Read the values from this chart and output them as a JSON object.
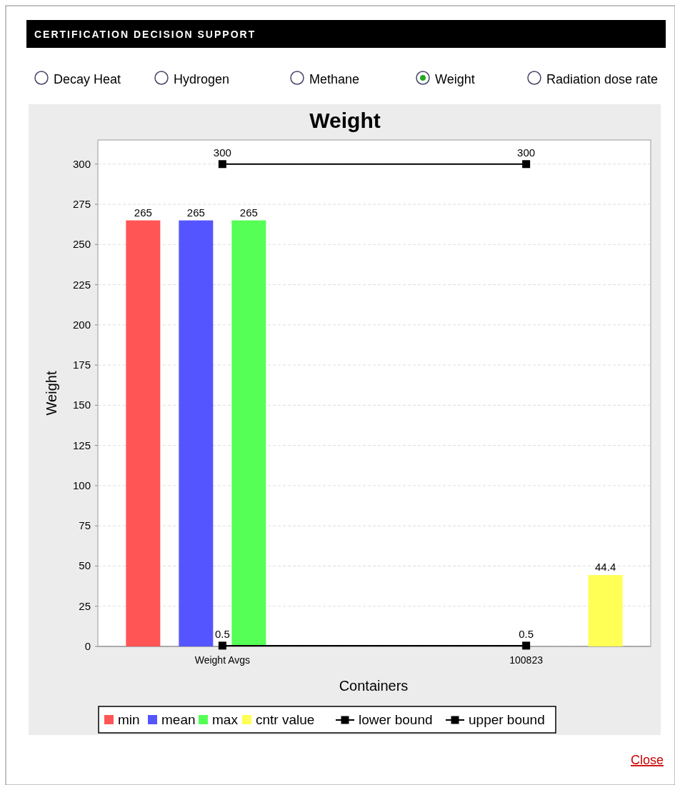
{
  "chart_data": {
    "type": "bar",
    "title": "Weight",
    "xlabel": "Containers",
    "ylabel": "Weight",
    "categories": [
      "Weight Avgs",
      "100823"
    ],
    "series": [
      {
        "name": "min",
        "color": "#ff5555",
        "values": [
          265,
          null
        ]
      },
      {
        "name": "mean",
        "color": "#5555ff",
        "values": [
          265,
          null
        ]
      },
      {
        "name": "max",
        "color": "#55ff55",
        "values": [
          265,
          null
        ]
      },
      {
        "name": "cntr value",
        "color": "#ffff55",
        "values": [
          null,
          44.4
        ]
      },
      {
        "name": "lower bound",
        "type": "line",
        "color": "#000000",
        "values": [
          0.5,
          0.5
        ]
      },
      {
        "name": "upper bound",
        "type": "line",
        "color": "#000000",
        "values": [
          300,
          300
        ]
      }
    ],
    "ylim": [
      0,
      315
    ],
    "yticks": [
      0,
      25,
      50,
      75,
      100,
      125,
      150,
      175,
      200,
      225,
      250,
      275,
      300
    ],
    "grid": "y",
    "legend": "bottom",
    "marker": "square",
    "data_labels": true,
    "annotations": [
      "CERTIFICATION DECISION SUPPORT",
      "Decay Heat",
      "Hydrogen",
      "Methane",
      "Weight",
      "Radiation dose rate",
      "Close"
    ]
  }
}
